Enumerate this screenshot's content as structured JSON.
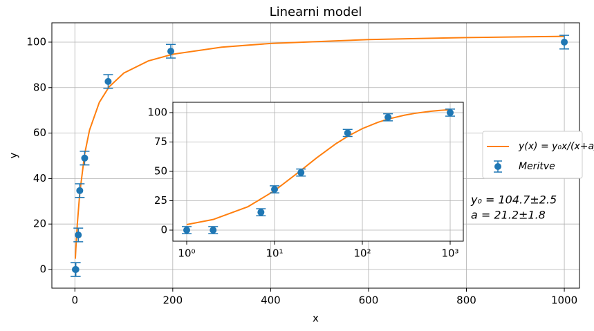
{
  "chart_data": [
    {
      "type": "line",
      "title": "Linearni model",
      "xlabel": "x",
      "ylabel": "y",
      "xlim": [
        -47,
        1031
      ],
      "ylim": [
        -8.2,
        108.5
      ],
      "xticks": [
        0,
        200,
        400,
        600,
        800,
        1000
      ],
      "yticks": [
        0,
        20,
        40,
        60,
        80,
        100
      ],
      "grid": true,
      "legend": "right",
      "series": [
        {
          "name": "y(x) = y₀x/(x+a)",
          "type": "line",
          "color": "#ff7f0e",
          "x": [
            1,
            2,
            5,
            10,
            20,
            30,
            50,
            70,
            100,
            150,
            200,
            300,
            400,
            600,
            800,
            1000
          ],
          "values": [
            4.72,
            9.03,
            19.98,
            33.56,
            50.83,
            61.35,
            73.53,
            80.36,
            86.39,
            91.73,
            94.67,
            97.79,
            99.43,
            101.13,
            102.0,
            102.53
          ]
        },
        {
          "name": "Meritve",
          "type": "errorbar",
          "color": "#1f77b4",
          "x": [
            1,
            2,
            7,
            10,
            20,
            68,
            196,
            1000
          ],
          "values": [
            0,
            0,
            15.2,
            34.7,
            49,
            82.7,
            96,
            100
          ],
          "errors": [
            3,
            3,
            3,
            3,
            3,
            3,
            3,
            3
          ]
        }
      ],
      "annotations": [
        "y₀ = 104.7±2.5",
        "a = 21.2±1.8"
      ]
    },
    {
      "type": "line",
      "xscale": "log",
      "xlim": [
        0.696,
        1411
      ],
      "ylim": [
        -9.4,
        108.8
      ],
      "xticks": [
        {
          "value": 1,
          "label": "10⁰"
        },
        {
          "value": 10,
          "label": "10¹"
        },
        {
          "value": 100,
          "label": "10²"
        },
        {
          "value": 1000,
          "label": "10³"
        }
      ],
      "yticks": [
        0,
        25,
        50,
        75,
        100
      ],
      "grid": true,
      "series": [
        {
          "type": "line",
          "color": "#ff7f0e",
          "x": [
            1,
            2,
            5,
            10,
            20,
            30,
            50,
            70,
            100,
            150,
            200,
            300,
            400,
            600,
            800,
            1000
          ],
          "values": [
            4.72,
            9.03,
            19.98,
            33.56,
            50.83,
            61.35,
            73.53,
            80.36,
            86.39,
            91.73,
            94.67,
            97.79,
            99.43,
            101.13,
            102.0,
            102.53
          ]
        },
        {
          "type": "errorbar",
          "color": "#1f77b4",
          "x": [
            1,
            2,
            7,
            10,
            20,
            68,
            196,
            1000
          ],
          "values": [
            0,
            0,
            15.2,
            34.7,
            49,
            82.7,
            96,
            100
          ],
          "errors": [
            3,
            3,
            3,
            3,
            3,
            3,
            3,
            3
          ]
        }
      ]
    }
  ]
}
